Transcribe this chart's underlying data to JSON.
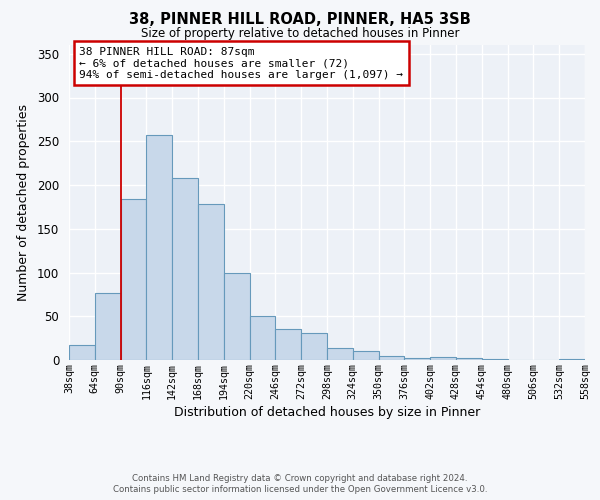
{
  "title": "38, PINNER HILL ROAD, PINNER, HA5 3SB",
  "subtitle": "Size of property relative to detached houses in Pinner",
  "xlabel": "Distribution of detached houses by size in Pinner",
  "ylabel": "Number of detached properties",
  "bar_color": "#c8d8ea",
  "bar_edge_color": "#6699bb",
  "bin_labels": [
    "38sqm",
    "64sqm",
    "90sqm",
    "116sqm",
    "142sqm",
    "168sqm",
    "194sqm",
    "220sqm",
    "246sqm",
    "272sqm",
    "298sqm",
    "324sqm",
    "350sqm",
    "376sqm",
    "402sqm",
    "428sqm",
    "454sqm",
    "480sqm",
    "506sqm",
    "532sqm",
    "558sqm"
  ],
  "bar_values": [
    17,
    77,
    184,
    257,
    208,
    178,
    100,
    50,
    36,
    31,
    14,
    10,
    5,
    2,
    4,
    2,
    1,
    0,
    0,
    1
  ],
  "bin_edges": [
    38,
    64,
    90,
    116,
    142,
    168,
    194,
    220,
    246,
    272,
    298,
    324,
    350,
    376,
    402,
    428,
    454,
    480,
    506,
    532,
    558
  ],
  "vline_x": 90,
  "ylim": [
    0,
    360
  ],
  "yticks": [
    0,
    50,
    100,
    150,
    200,
    250,
    300,
    350
  ],
  "annotation_title": "38 PINNER HILL ROAD: 87sqm",
  "annotation_line1": "← 6% of detached houses are smaller (72)",
  "annotation_line2": "94% of semi-detached houses are larger (1,097) →",
  "annotation_box_color": "#ffffff",
  "annotation_box_edge": "#cc0000",
  "footer_line1": "Contains HM Land Registry data © Crown copyright and database right 2024.",
  "footer_line2": "Contains public sector information licensed under the Open Government Licence v3.0.",
  "background_color": "#f5f7fa",
  "plot_bg_color": "#edf1f7"
}
